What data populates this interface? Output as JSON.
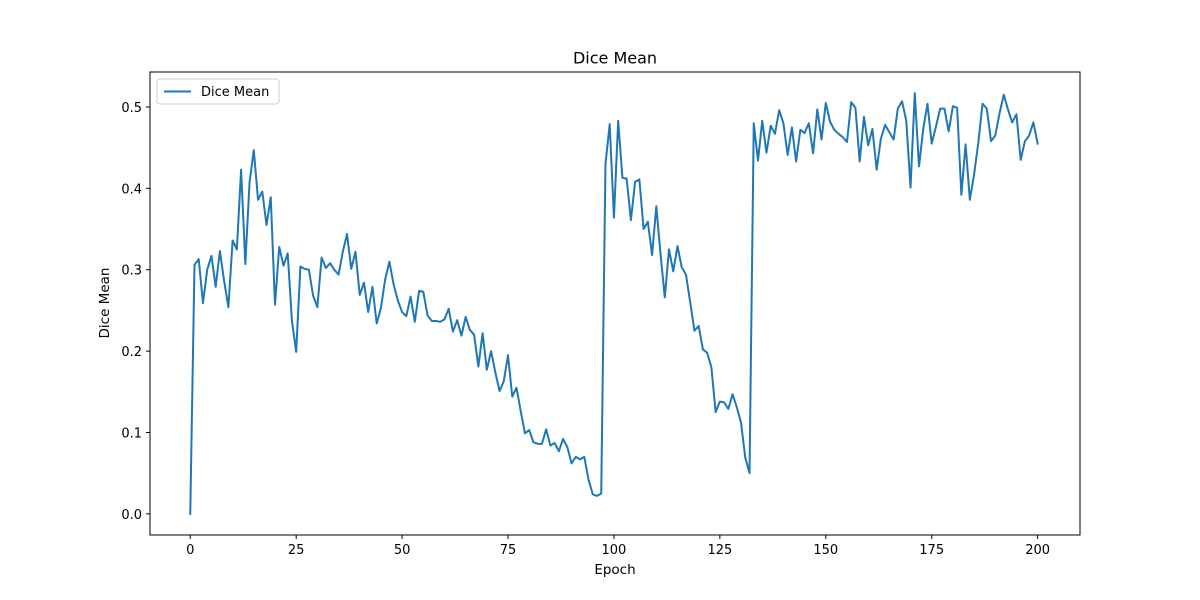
{
  "chart_data": {
    "type": "line",
    "title": "Dice Mean",
    "xlabel": "Epoch",
    "ylabel": "Dice Mean",
    "xlim": [
      -9.5,
      210
    ],
    "ylim": [
      -0.026,
      0.543
    ],
    "xticks": [
      0,
      25,
      50,
      75,
      100,
      125,
      150,
      175,
      200
    ],
    "yticks": [
      0.0,
      0.1,
      0.2,
      0.3,
      0.4,
      0.5
    ],
    "ytick_labels": [
      "0.0",
      "0.1",
      "0.2",
      "0.3",
      "0.4",
      "0.5"
    ],
    "grid": false,
    "legend_position": "top-left",
    "colors": {
      "series": "#1f77b4",
      "axes": "#000000",
      "background": "#ffffff"
    },
    "series": [
      {
        "name": "Dice Mean",
        "x": [
          0,
          1,
          2,
          3,
          4,
          5,
          6,
          7,
          8,
          9,
          10,
          11,
          12,
          13,
          14,
          15,
          16,
          17,
          18,
          19,
          20,
          21,
          22,
          23,
          24,
          25,
          26,
          27,
          28,
          29,
          30,
          31,
          32,
          33,
          34,
          35,
          36,
          37,
          38,
          39,
          40,
          41,
          42,
          43,
          44,
          45,
          46,
          47,
          48,
          49,
          50,
          51,
          52,
          53,
          54,
          55,
          56,
          57,
          58,
          59,
          60,
          61,
          62,
          63,
          64,
          65,
          66,
          67,
          68,
          69,
          70,
          71,
          72,
          73,
          74,
          75,
          76,
          77,
          78,
          79,
          80,
          81,
          82,
          83,
          84,
          85,
          86,
          87,
          88,
          89,
          90,
          91,
          92,
          93,
          94,
          95,
          96,
          97,
          98,
          99,
          100,
          101,
          102,
          103,
          104,
          105,
          106,
          107,
          108,
          109,
          110,
          111,
          112,
          113,
          114,
          115,
          116,
          117,
          118,
          119,
          120,
          121,
          122,
          123,
          124,
          125,
          126,
          127,
          128,
          129,
          130,
          131,
          132,
          133,
          134,
          135,
          136,
          137,
          138,
          139,
          140,
          141,
          142,
          143,
          144,
          145,
          146,
          147,
          148,
          149,
          150,
          151,
          152,
          153,
          154,
          155,
          156,
          157,
          158,
          159,
          160,
          161,
          162,
          163,
          164,
          165,
          166,
          167,
          168,
          169,
          170,
          171,
          172,
          173,
          174,
          175,
          176,
          177,
          178,
          179,
          180,
          181,
          182,
          183,
          184,
          185,
          186,
          187,
          188,
          189,
          190,
          191,
          192,
          193,
          194,
          195,
          196,
          197,
          198,
          199,
          200
        ],
        "y": [
          0.0,
          0.306,
          0.313,
          0.259,
          0.3,
          0.317,
          0.279,
          0.323,
          0.286,
          0.254,
          0.336,
          0.325,
          0.423,
          0.307,
          0.408,
          0.447,
          0.386,
          0.396,
          0.355,
          0.389,
          0.257,
          0.328,
          0.305,
          0.32,
          0.237,
          0.199,
          0.304,
          0.301,
          0.3,
          0.268,
          0.254,
          0.315,
          0.302,
          0.308,
          0.3,
          0.294,
          0.322,
          0.344,
          0.301,
          0.322,
          0.269,
          0.284,
          0.248,
          0.279,
          0.234,
          0.253,
          0.288,
          0.31,
          0.282,
          0.262,
          0.248,
          0.243,
          0.267,
          0.236,
          0.274,
          0.273,
          0.244,
          0.237,
          0.237,
          0.236,
          0.239,
          0.252,
          0.224,
          0.238,
          0.219,
          0.242,
          0.226,
          0.22,
          0.181,
          0.222,
          0.177,
          0.2,
          0.174,
          0.151,
          0.163,
          0.195,
          0.144,
          0.155,
          0.126,
          0.099,
          0.103,
          0.088,
          0.086,
          0.086,
          0.104,
          0.084,
          0.087,
          0.077,
          0.092,
          0.082,
          0.062,
          0.07,
          0.067,
          0.07,
          0.042,
          0.024,
          0.022,
          0.025,
          0.43,
          0.479,
          0.364,
          0.483,
          0.413,
          0.412,
          0.361,
          0.408,
          0.411,
          0.35,
          0.359,
          0.318,
          0.378,
          0.319,
          0.266,
          0.325,
          0.298,
          0.329,
          0.303,
          0.294,
          0.26,
          0.225,
          0.231,
          0.202,
          0.198,
          0.18,
          0.125,
          0.138,
          0.137,
          0.129,
          0.147,
          0.131,
          0.112,
          0.069,
          0.05,
          0.48,
          0.434,
          0.483,
          0.444,
          0.477,
          0.467,
          0.496,
          0.48,
          0.441,
          0.475,
          0.433,
          0.472,
          0.468,
          0.48,
          0.443,
          0.497,
          0.46,
          0.505,
          0.482,
          0.472,
          0.467,
          0.463,
          0.457,
          0.506,
          0.499,
          0.433,
          0.488,
          0.453,
          0.473,
          0.423,
          0.461,
          0.478,
          0.469,
          0.46,
          0.498,
          0.507,
          0.483,
          0.401,
          0.517,
          0.427,
          0.473,
          0.504,
          0.455,
          0.476,
          0.498,
          0.498,
          0.47,
          0.501,
          0.499,
          0.392,
          0.454,
          0.386,
          0.417,
          0.456,
          0.504,
          0.498,
          0.458,
          0.465,
          0.492,
          0.515,
          0.497,
          0.481,
          0.491,
          0.435,
          0.458,
          0.465,
          0.481,
          0.455
        ]
      }
    ]
  }
}
